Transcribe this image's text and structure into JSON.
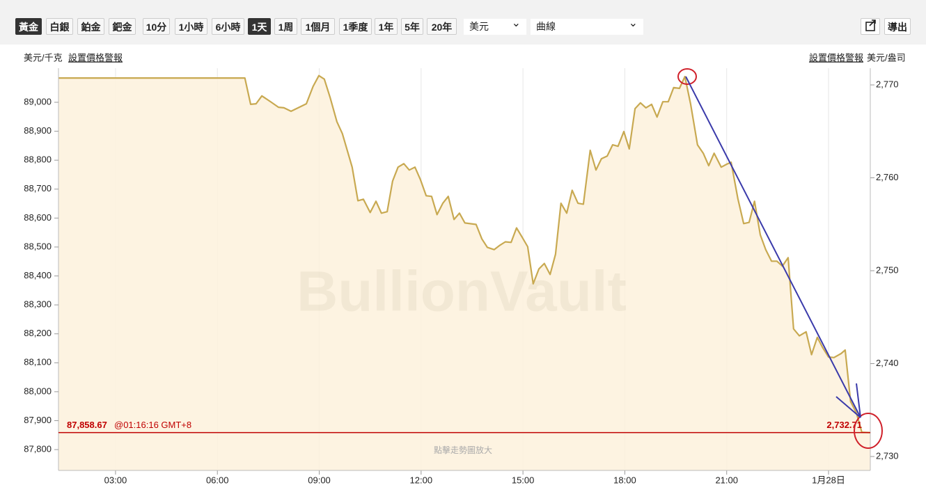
{
  "toolbar": {
    "buttons": [
      "黃金",
      "白銀",
      "鉑金",
      "鈀金",
      "10分",
      "1小時",
      "6小時",
      "1天",
      "1周",
      "1個月",
      "1季度",
      "1年",
      "5年",
      "20年"
    ],
    "active": [
      0,
      7
    ],
    "currency": "美元",
    "style": "曲線",
    "export": "導出"
  },
  "header": {
    "left_unit": "美元/千克",
    "left_alert": "設置價格警報",
    "right_alert": "設置價格警報",
    "right_unit": "美元/盎司"
  },
  "chart_data": {
    "type": "line",
    "watermark": "BullionVault",
    "hint": "點擊走勢圖放大",
    "last": {
      "left_label": "87,858.67",
      "time": "@01:16:16 GMT+8",
      "right_label": "2,732.71"
    },
    "xlim": [
      1.32,
      25.23
    ],
    "xticks": [
      {
        "value": 3,
        "label": "03:00"
      },
      {
        "value": 6,
        "label": "06:00"
      },
      {
        "value": 9,
        "label": "09:00"
      },
      {
        "value": 12,
        "label": "12:00"
      },
      {
        "value": 15,
        "label": "15:00"
      },
      {
        "value": 18,
        "label": "18:00"
      },
      {
        "value": 21,
        "label": "21:00"
      },
      {
        "value": 24,
        "label": "1月28日"
      }
    ],
    "ylim": [
      87728,
      89113
    ],
    "yticks": [
      {
        "value": 87800,
        "label": "87,800"
      },
      {
        "value": 87900,
        "label": "87,900"
      },
      {
        "value": 88000,
        "label": "88,000"
      },
      {
        "value": 88100,
        "label": "88,100"
      },
      {
        "value": 88200,
        "label": "88,200"
      },
      {
        "value": 88300,
        "label": "88,300"
      },
      {
        "value": 88400,
        "label": "88,400"
      },
      {
        "value": 88500,
        "label": "88,500"
      },
      {
        "value": 88600,
        "label": "88,600"
      },
      {
        "value": 88700,
        "label": "88,700"
      },
      {
        "value": 88800,
        "label": "88,800"
      },
      {
        "value": 88900,
        "label": "88,900"
      },
      {
        "value": 89000,
        "label": "89,000"
      }
    ],
    "y2lim": [
      2728.5,
      2771.65
    ],
    "y2ticks": [
      {
        "value": 2730,
        "label": "2,730"
      },
      {
        "value": 2740,
        "label": "2,740"
      },
      {
        "value": 2750,
        "label": "2,750"
      },
      {
        "value": 2760,
        "label": "2,760"
      },
      {
        "value": 2770,
        "label": "2,770"
      }
    ],
    "x": [
      1.32,
      6.81,
      6.98,
      7.14,
      7.31,
      7.59,
      7.8,
      7.96,
      8.17,
      8.41,
      8.62,
      8.82,
      8.99,
      9.15,
      9.32,
      9.52,
      9.68,
      9.97,
      10.14,
      10.3,
      10.5,
      10.67,
      10.83,
      11.0,
      11.16,
      11.32,
      11.49,
      11.65,
      11.82,
      11.98,
      12.15,
      12.31,
      12.47,
      12.64,
      12.8,
      12.97,
      13.13,
      13.29,
      13.62,
      13.79,
      13.95,
      14.15,
      14.32,
      14.48,
      14.65,
      14.81,
      14.97,
      15.14,
      15.3,
      15.47,
      15.63,
      15.8,
      15.96,
      16.12,
      16.29,
      16.45,
      16.62,
      16.78,
      16.98,
      17.15,
      17.31,
      17.48,
      17.64,
      17.8,
      17.97,
      18.13,
      18.3,
      18.46,
      18.62,
      18.79,
      18.95,
      19.12,
      19.28,
      19.44,
      19.61,
      19.77,
      19.94,
      20.14,
      20.31,
      20.47,
      20.63,
      20.84,
      21.0,
      21.13,
      21.33,
      21.5,
      21.66,
      21.82,
      21.99,
      22.15,
      22.32,
      22.48,
      22.64,
      22.81,
      22.97,
      23.14,
      23.34,
      23.5,
      23.67,
      23.83,
      24.0,
      24.16,
      24.37,
      24.49,
      24.65,
      24.82,
      24.98,
      25.23
    ],
    "series": [
      {
        "name": "黃金",
        "color": "#c8a951",
        "values": [
          89084,
          89084,
          88993,
          88995,
          89022,
          89000,
          88983,
          88981,
          88969,
          88983,
          88995,
          89055,
          89092,
          89080,
          89017,
          88933,
          88892,
          88776,
          88660,
          88665,
          88619,
          88658,
          88617,
          88622,
          88728,
          88776,
          88788,
          88766,
          88776,
          88733,
          88677,
          88675,
          88612,
          88651,
          88675,
          88595,
          88617,
          88583,
          88578,
          88528,
          88499,
          88491,
          88506,
          88518,
          88516,
          88566,
          88535,
          88501,
          88373,
          88424,
          88443,
          88405,
          88475,
          88651,
          88617,
          88696,
          88651,
          88648,
          88834,
          88766,
          88805,
          88814,
          88853,
          88848,
          88899,
          88839,
          88978,
          88998,
          88981,
          88993,
          88949,
          89002,
          89002,
          89051,
          89048,
          89089,
          88993,
          88853,
          88824,
          88781,
          88824,
          88776,
          88786,
          88793,
          88667,
          88581,
          88585,
          88658,
          88542,
          88491,
          88451,
          88451,
          88434,
          88463,
          88217,
          88193,
          88207,
          88128,
          88188,
          88152,
          88120,
          88118,
          88132,
          88144,
          87966,
          87927,
          87860,
          87858.67
        ]
      }
    ],
    "last_line_color": "#c00000",
    "fill_color": "#fdf1dc"
  }
}
